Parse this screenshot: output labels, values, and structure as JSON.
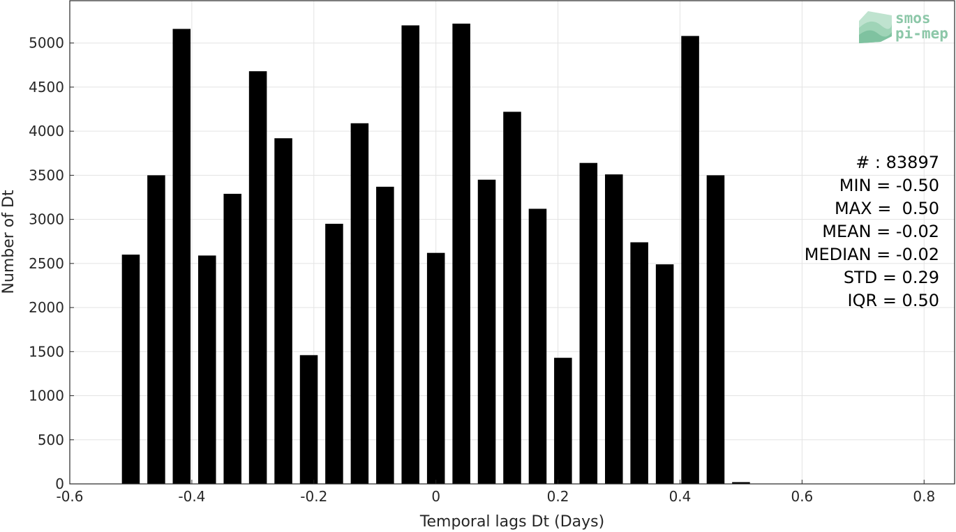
{
  "chart_data": {
    "type": "bar",
    "title": "",
    "xlabel": "Temporal lags Dt (Days)",
    "ylabel": "Number of Dt",
    "xlim": [
      -0.6,
      0.85
    ],
    "ylim": [
      0,
      5480
    ],
    "xticks": [
      -0.6,
      -0.4,
      -0.2,
      0,
      0.2,
      0.4,
      0.6,
      0.8
    ],
    "xtick_labels": [
      "-0.6",
      "-0.4",
      "-0.2",
      "0",
      "0.2",
      "0.4",
      "0.6",
      "0.8"
    ],
    "yticks": [
      0,
      500,
      1000,
      1500,
      2000,
      2500,
      3000,
      3500,
      4000,
      4500,
      5000
    ],
    "ytick_labels": [
      "0",
      "500",
      "1000",
      "1500",
      "2000",
      "2500",
      "3000",
      "3500",
      "4000",
      "4500",
      "5000"
    ],
    "grid": true,
    "bar_color": "#000000",
    "bar_width": 0.0292,
    "x": [
      -0.5,
      -0.4583,
      -0.4167,
      -0.375,
      -0.3333,
      -0.2917,
      -0.25,
      -0.2083,
      -0.1667,
      -0.125,
      -0.0833,
      -0.0417,
      0,
      0.0417,
      0.0833,
      0.125,
      0.1667,
      0.2083,
      0.25,
      0.2917,
      0.3333,
      0.375,
      0.4167,
      0.4583,
      0.5
    ],
    "values": [
      2600,
      3500,
      5160,
      2590,
      3290,
      4680,
      3920,
      1460,
      2950,
      4090,
      3370,
      5200,
      2620,
      5220,
      3450,
      4220,
      3120,
      1430,
      3640,
      3510,
      2740,
      2490,
      5080,
      3500,
      20
    ]
  },
  "stats": {
    "count": "# : 83897",
    "min": "MIN = -0.50",
    "max": "MAX =  0.50",
    "mean": "MEAN = -0.02",
    "median": "MEDIAN = -0.02",
    "std": "STD = 0.29",
    "iqr": "IQR = 0.50"
  },
  "logo": {
    "line1": "smos",
    "line2": "pi-mep",
    "color": "#8cc7a8"
  }
}
